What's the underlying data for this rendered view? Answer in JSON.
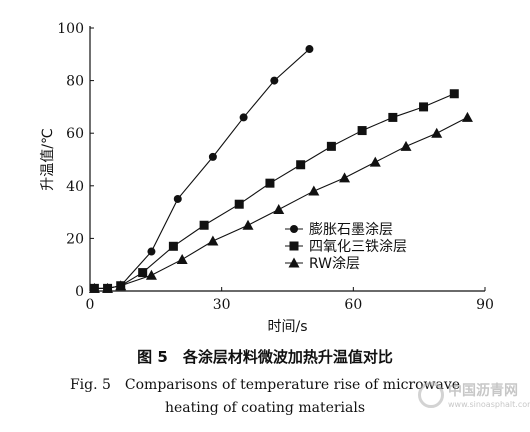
{
  "chart_data": {
    "type": "line",
    "xlabel": "时间/s",
    "ylabel": "升温值/℃",
    "xlim": [
      0,
      90
    ],
    "ylim": [
      0,
      100
    ],
    "xticks": [
      0,
      30,
      60,
      90
    ],
    "yticks": [
      0,
      20,
      40,
      60,
      80,
      100
    ],
    "grid": false,
    "legend_position": "right-middle",
    "series": [
      {
        "name": "膨胀石墨涂层",
        "marker": "circle",
        "x": [
          1,
          4,
          7,
          14,
          20,
          28,
          35,
          42,
          50
        ],
        "y": [
          1,
          1,
          2,
          15,
          35,
          51,
          66,
          80,
          92
        ]
      },
      {
        "name": "四氧化三铁涂层",
        "marker": "square",
        "x": [
          1,
          4,
          7,
          12,
          19,
          26,
          34,
          41,
          48,
          55,
          62,
          69,
          76,
          83
        ],
        "y": [
          1,
          1,
          2,
          7,
          17,
          25,
          33,
          41,
          48,
          55,
          61,
          66,
          70,
          75
        ]
      },
      {
        "name": "RW涂层",
        "marker": "triangle",
        "x": [
          1,
          4,
          7,
          14,
          21,
          28,
          36,
          43,
          51,
          58,
          65,
          72,
          79,
          86
        ],
        "y": [
          1,
          1,
          2,
          6,
          12,
          19,
          25,
          31,
          38,
          43,
          49,
          55,
          60,
          66
        ]
      }
    ]
  },
  "caption": {
    "cn": "图 5　各涂层材料微波加热升温值对比",
    "en_line1": "Fig. 5　Comparisons of temperature rise of microwave",
    "en_line2": "heating of coating materials"
  },
  "watermark": {
    "name": "中国沥青网",
    "url": "www.sinoasphalt.com"
  }
}
